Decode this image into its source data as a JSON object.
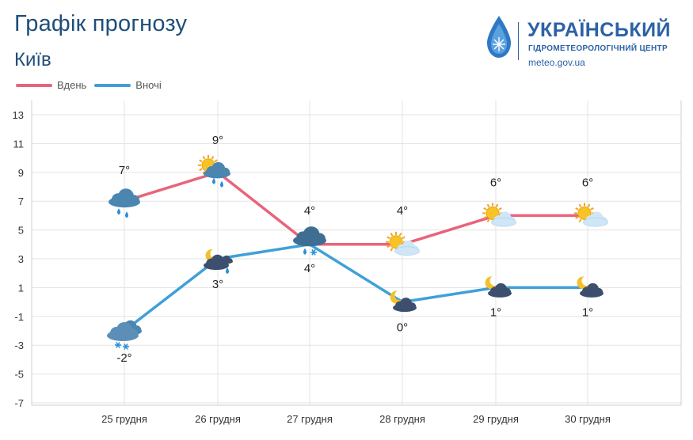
{
  "header": {
    "title": "Графік прогнозу",
    "city": "Київ"
  },
  "logo": {
    "name": "УКРАЇНСЬКИЙ",
    "subtitle": "ГІДРОМЕТЕОРОЛОГІЧНИЙ ЦЕНТР",
    "url": "meteo.gov.ua"
  },
  "colors": {
    "day": "#e8647c",
    "night": "#3fa0d8",
    "grid": "#e3e3e3",
    "title": "#1f4e79",
    "logo": "#2c62a5"
  },
  "chart_data": {
    "type": "line",
    "categories": [
      "25 грудня",
      "26 грудня",
      "27 грудня",
      "28 грудня",
      "29 грудня",
      "30 грудня"
    ],
    "series": [
      {
        "name": "Вдень",
        "values": [
          7,
          9,
          4,
          4,
          6,
          6
        ],
        "labels": [
          "7°",
          "9°",
          "4°",
          "4°",
          "6°",
          "6°"
        ],
        "icons": [
          "cloud-rain-icon",
          "sun-cloud-rain-icon",
          "cloud-rain-snow-icon",
          "sun-cloud-icon",
          "sun-cloud-icon",
          "sun-cloud-icon"
        ]
      },
      {
        "name": "Вночі",
        "values": [
          -2,
          3,
          4,
          0,
          1,
          1
        ],
        "labels": [
          "-2°",
          "3°",
          "4°",
          "0°",
          "1°",
          "1°"
        ],
        "icons": [
          "cloud-snow-icon",
          "moon-cloud-rain-icon",
          "cloud-rain-snow-icon",
          "moon-cloud-icon",
          "moon-cloud-icon",
          "moon-cloud-icon"
        ]
      }
    ],
    "yticks": [
      13,
      11,
      9,
      7,
      5,
      3,
      1,
      -1,
      -3,
      -5,
      -7
    ],
    "ylim": [
      -7,
      13
    ],
    "grid": true,
    "legend": "top-left",
    "xlabel": "",
    "ylabel": ""
  }
}
